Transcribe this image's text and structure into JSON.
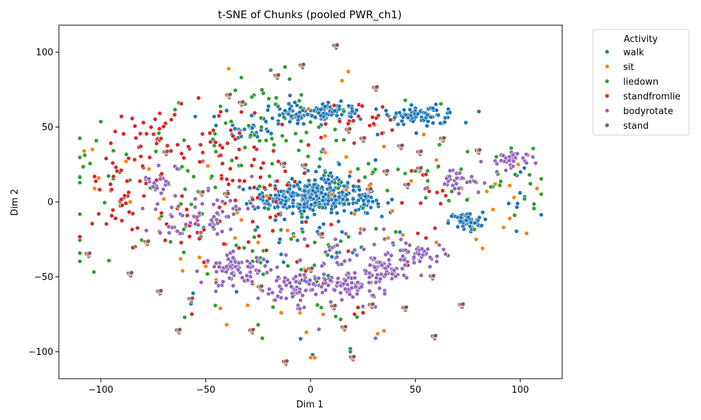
{
  "chart_data": {
    "type": "scatter",
    "title": "t-SNE of Chunks (pooled PWR_ch1)",
    "xlabel": "Dim 1",
    "ylabel": "Dim 2",
    "xlim": [
      -120,
      120
    ],
    "ylim": [
      -118,
      118
    ],
    "xticks": [
      -100,
      -50,
      0,
      50,
      100
    ],
    "yticks": [
      -100,
      -50,
      0,
      50,
      100
    ],
    "grid": false,
    "legend": {
      "title": "Activity",
      "placement": "upper-right-outside"
    },
    "series": [
      {
        "name": "walk",
        "color": "#1f77b4",
        "clusters": [
          {
            "cx": 0,
            "cy": 3,
            "sx": 14,
            "sy": 5,
            "n": 260
          },
          {
            "cx": 8,
            "cy": 12,
            "sx": 6,
            "sy": 6,
            "n": 45
          },
          {
            "cx": 25,
            "cy": -2,
            "sx": 4,
            "sy": 3,
            "n": 20
          },
          {
            "cx": -5,
            "cy": 58,
            "sx": 11,
            "sy": 4,
            "n": 80
          },
          {
            "cx": 12,
            "cy": 60,
            "sx": 8,
            "sy": 3,
            "n": 50
          },
          {
            "cx": -28,
            "cy": 48,
            "sx": 6,
            "sy": 3,
            "n": 25
          },
          {
            "cx": 55,
            "cy": 58,
            "sx": 8,
            "sy": 3,
            "n": 60
          },
          {
            "cx": 43,
            "cy": 57,
            "sx": 4,
            "sy": 1.5,
            "n": 15
          },
          {
            "cx": 74,
            "cy": -13,
            "sx": 4,
            "sy": 3,
            "n": 50
          },
          {
            "cx": 100,
            "cy": 0,
            "sx": 6,
            "sy": 20,
            "n": 10
          },
          {
            "cx": 0,
            "cy": -20,
            "sx": 25,
            "sy": 25,
            "n": 50
          }
        ],
        "points": [
          [
            -56,
            -61
          ],
          [
            -57,
            -68
          ],
          [
            -55,
            57
          ],
          [
            -46,
            57
          ],
          [
            1,
            -102
          ],
          [
            19,
            -98
          ],
          [
            32,
            45
          ],
          [
            36,
            61
          ],
          [
            31,
            28
          ],
          [
            -40,
            61
          ],
          [
            15,
            -20
          ],
          [
            -14,
            -35
          ]
        ]
      },
      {
        "name": "sit",
        "color": "#ff7f0e",
        "points": [
          [
            -108,
            34
          ],
          [
            -104,
            35
          ],
          [
            -103,
            9
          ],
          [
            -101,
            16
          ],
          [
            -88,
            27
          ],
          [
            -86,
            0
          ],
          [
            -77,
            22
          ],
          [
            -70,
            2
          ],
          [
            -62,
            -38
          ],
          [
            -61,
            -46
          ],
          [
            -53,
            -37
          ],
          [
            -45,
            -52
          ],
          [
            -43,
            -71
          ],
          [
            -39,
            89
          ],
          [
            -30,
            -69
          ],
          [
            -40,
            -82
          ],
          [
            -36,
            -24
          ],
          [
            -35,
            -7
          ],
          [
            -25,
            -27
          ],
          [
            -14,
            -74
          ],
          [
            -11,
            -19
          ],
          [
            -5,
            -74
          ],
          [
            -3,
            -45
          ],
          [
            -2,
            -87
          ],
          [
            -1,
            62
          ],
          [
            0,
            -104
          ],
          [
            2,
            -104
          ],
          [
            6,
            -75
          ],
          [
            7,
            33
          ],
          [
            7,
            44
          ],
          [
            3,
            -69
          ],
          [
            15,
            81
          ],
          [
            17,
            30
          ],
          [
            18,
            87
          ],
          [
            19,
            20
          ],
          [
            21,
            -8
          ],
          [
            24,
            -18
          ],
          [
            32,
            -88
          ],
          [
            35,
            -86
          ],
          [
            35,
            37
          ],
          [
            37,
            -24
          ],
          [
            39,
            -6
          ],
          [
            44,
            -22
          ],
          [
            48,
            14
          ],
          [
            54,
            45
          ],
          [
            60,
            -27
          ],
          [
            60,
            28
          ],
          [
            72,
            9
          ],
          [
            75,
            2
          ],
          [
            79,
            -25
          ],
          [
            82,
            -31
          ],
          [
            84,
            7
          ],
          [
            87,
            -5
          ],
          [
            88,
            12
          ],
          [
            92,
            -17
          ],
          [
            95,
            11
          ],
          [
            97,
            3
          ],
          [
            103,
            -21
          ],
          [
            108,
            9
          ],
          [
            99,
            25
          ],
          [
            -49,
            24
          ],
          [
            -21,
            4
          ],
          [
            17,
            8
          ],
          [
            -8,
            -23
          ],
          [
            -33,
            -12
          ],
          [
            28,
            11
          ],
          [
            95,
            -11
          ],
          [
            -50,
            -43
          ],
          [
            -72,
            -11
          ],
          [
            10,
            5
          ]
        ]
      },
      {
        "name": "liedown",
        "color": "#2ca02c",
        "clusters": [
          {
            "cx": -60,
            "cy": 10,
            "sx": 30,
            "sy": 30,
            "n": 60
          },
          {
            "cx": -25,
            "cy": 55,
            "sx": 20,
            "sy": 15,
            "n": 35
          },
          {
            "cx": -15,
            "cy": -40,
            "sx": 25,
            "sy": 20,
            "n": 45
          },
          {
            "cx": 85,
            "cy": 15,
            "sx": 15,
            "sy": 15,
            "n": 30
          },
          {
            "cx": 20,
            "cy": 25,
            "sx": 30,
            "sy": 20,
            "n": 30
          },
          {
            "cx": -100,
            "cy": 15,
            "sx": 8,
            "sy": 10,
            "n": 10
          }
        ],
        "points": [
          [
            -19,
            88
          ],
          [
            -33,
            83
          ],
          [
            -10,
            82
          ],
          [
            -23,
            -91
          ],
          [
            -25,
            -82
          ],
          [
            -60,
            -77
          ],
          [
            -8,
            -62
          ],
          [
            19,
            -100
          ],
          [
            2,
            -27
          ],
          [
            9,
            -30
          ]
        ]
      },
      {
        "name": "standfromlie",
        "color": "#d62728",
        "clusters": [
          {
            "cx": -85,
            "cy": 5,
            "sx": 12,
            "sy": 22,
            "n": 45
          },
          {
            "cx": -75,
            "cy": 45,
            "sx": 8,
            "sy": 10,
            "n": 30
          },
          {
            "cx": -45,
            "cy": 30,
            "sx": 12,
            "sy": 18,
            "n": 45
          },
          {
            "cx": -20,
            "cy": 15,
            "sx": 10,
            "sy": 12,
            "n": 25
          },
          {
            "cx": 25,
            "cy": 55,
            "sx": 8,
            "sy": 6,
            "n": 20
          },
          {
            "cx": 60,
            "cy": 0,
            "sx": 10,
            "sy": 15,
            "n": 15
          },
          {
            "cx": 0,
            "cy": -40,
            "sx": 20,
            "sy": 20,
            "n": 20
          },
          {
            "cx": -55,
            "cy": -20,
            "sx": 8,
            "sy": 10,
            "n": 15
          }
        ],
        "points": [
          [
            -93,
            -11
          ],
          [
            -101,
            -8
          ],
          [
            -94,
            17
          ],
          [
            -103,
            17
          ],
          [
            25,
            -74
          ],
          [
            21,
            -75
          ],
          [
            -48,
            46
          ],
          [
            -37,
            44
          ],
          [
            -1,
            38
          ],
          [
            5,
            43
          ],
          [
            14,
            -54
          ],
          [
            23,
            14
          ]
        ]
      },
      {
        "name": "bodyrotate",
        "color": "#9467bd",
        "clusters": [
          {
            "cx": -35,
            "cy": -45,
            "sx": 8,
            "sy": 5,
            "n": 70
          },
          {
            "cx": -5,
            "cy": -57,
            "sx": 10,
            "sy": 6,
            "n": 75
          },
          {
            "cx": 22,
            "cy": -55,
            "sx": 8,
            "sy": 6,
            "n": 60
          },
          {
            "cx": 35,
            "cy": -47,
            "sx": 6,
            "sy": 5,
            "n": 45
          },
          {
            "cx": 52,
            "cy": -35,
            "sx": 6,
            "sy": 4,
            "n": 40
          },
          {
            "cx": -45,
            "cy": -8,
            "sx": 8,
            "sy": 6,
            "n": 35
          },
          {
            "cx": -65,
            "cy": -12,
            "sx": 5,
            "sy": 6,
            "n": 20
          },
          {
            "cx": -72,
            "cy": 15,
            "sx": 4,
            "sy": 6,
            "n": 20
          },
          {
            "cx": 70,
            "cy": 15,
            "sx": 6,
            "sy": 4,
            "n": 30
          },
          {
            "cx": 93,
            "cy": 27,
            "sx": 5,
            "sy": 4,
            "n": 30
          },
          {
            "cx": 15,
            "cy": -35,
            "sx": 15,
            "sy": 8,
            "n": 30
          }
        ],
        "points": [
          [
            -63,
            -3
          ],
          [
            -55,
            2
          ],
          [
            4,
            -85
          ],
          [
            31,
            -91
          ],
          [
            -14,
            -64
          ],
          [
            -6,
            -69
          ],
          [
            6,
            35
          ],
          [
            -28,
            17
          ],
          [
            -34,
            10
          ],
          [
            103,
            26
          ],
          [
            106,
            30
          ]
        ]
      },
      {
        "name": "stand",
        "color": "#8c564b",
        "points": [
          [
            12,
            104
          ],
          [
            -4,
            91
          ],
          [
            -39,
            71
          ],
          [
            -16,
            84
          ],
          [
            31,
            76
          ],
          [
            -69,
            33
          ],
          [
            -52,
            6
          ],
          [
            -13,
            25
          ],
          [
            -3,
            24
          ],
          [
            25,
            42
          ],
          [
            36,
            20
          ],
          [
            46,
            11
          ],
          [
            52,
            33
          ],
          [
            52,
            22
          ],
          [
            63,
            42
          ],
          [
            80,
            34
          ],
          [
            28,
            8
          ],
          [
            -40,
            5
          ],
          [
            -86,
            -48
          ],
          [
            -78,
            -27
          ],
          [
            -57,
            -65
          ],
          [
            -63,
            -86
          ],
          [
            -28,
            -86
          ],
          [
            -24,
            -57
          ],
          [
            0,
            -45
          ],
          [
            11,
            -70
          ],
          [
            29,
            -69
          ],
          [
            45,
            -71
          ],
          [
            58,
            -50
          ],
          [
            72,
            -69
          ],
          [
            5,
            -22
          ],
          [
            18,
            48
          ],
          [
            16,
            -84
          ],
          [
            20,
            -104
          ],
          [
            -12,
            -107
          ],
          [
            -72,
            -60
          ],
          [
            -106,
            -35
          ],
          [
            59,
            -90
          ],
          [
            -33,
            66
          ],
          [
            43,
            37
          ]
        ]
      }
    ]
  }
}
